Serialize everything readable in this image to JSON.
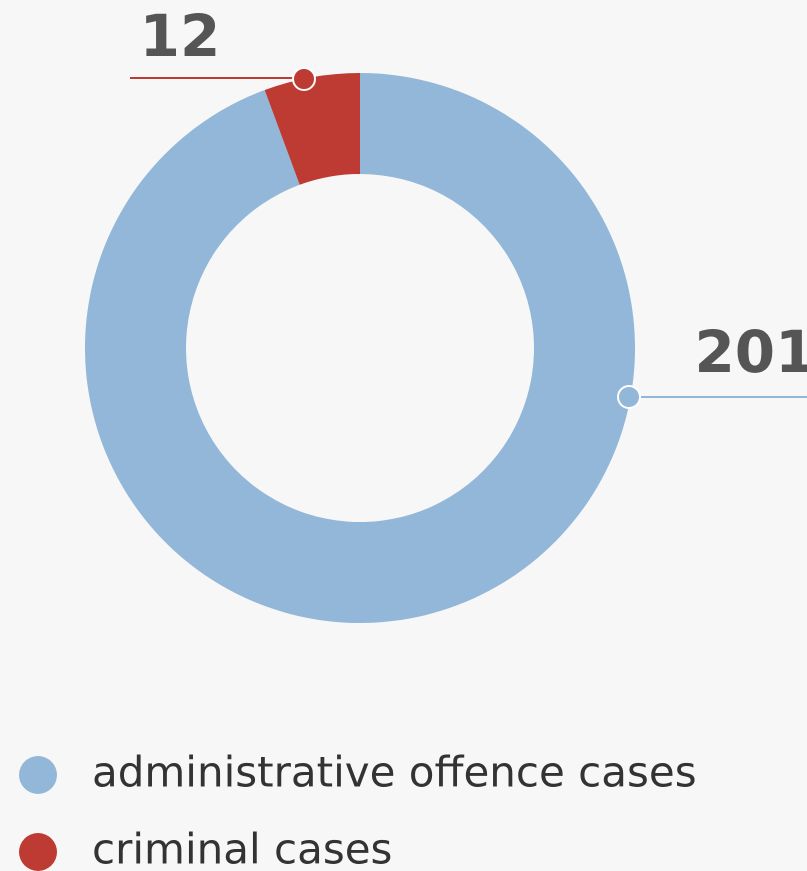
{
  "chart_data": {
    "type": "donut",
    "categories": [
      "administrative offence cases",
      "criminal cases"
    ],
    "values": [
      201,
      12
    ],
    "colors": [
      "#93b7d8",
      "#bd3b33"
    ]
  }
}
